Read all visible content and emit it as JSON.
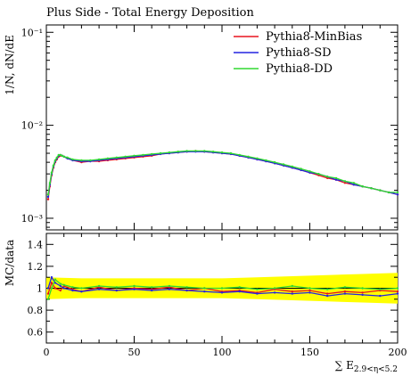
{
  "chart_data": [
    {
      "type": "line",
      "title": "Plus Side - Total Energy Deposition",
      "ylabel": "1/N, dN/dE",
      "yscale": "log",
      "ylim": [
        0.00075,
        0.12
      ],
      "xlim": [
        0,
        200
      ],
      "yticks": [
        {
          "value": 0.1,
          "label": "10⁻¹"
        },
        {
          "value": 0.01,
          "label": "10⁻²"
        },
        {
          "value": 0.001,
          "label": "10⁻³"
        }
      ],
      "legend_position": "top-right",
      "x": [
        1,
        2,
        3,
        4,
        5,
        6,
        7,
        8,
        9,
        10,
        12,
        15,
        20,
        25,
        30,
        35,
        40,
        45,
        50,
        55,
        60,
        65,
        70,
        75,
        80,
        85,
        90,
        95,
        100,
        105,
        110,
        115,
        120,
        125,
        130,
        135,
        140,
        145,
        150,
        155,
        160,
        165,
        170,
        175,
        180,
        185,
        190,
        195,
        200
      ],
      "series": [
        {
          "name": "Pythia8-MinBias",
          "color": "#e8141e",
          "values": [
            0.0016,
            0.0022,
            0.0029,
            0.0035,
            0.004,
            0.0043,
            0.0046,
            0.0047,
            0.0047,
            0.0046,
            0.0044,
            0.0042,
            0.004,
            0.0041,
            0.0041,
            0.0042,
            0.0043,
            0.0044,
            0.0045,
            0.0046,
            0.0047,
            0.0049,
            0.005,
            0.0051,
            0.0052,
            0.0053,
            0.0052,
            0.0051,
            0.005,
            0.0049,
            0.0047,
            0.0045,
            0.0043,
            0.0041,
            0.0039,
            0.0037,
            0.0035,
            0.0033,
            0.0031,
            0.0029,
            0.0027,
            0.0026,
            0.0024,
            0.0023,
            0.0022,
            0.0021,
            0.002,
            0.0019,
            0.0018
          ]
        },
        {
          "name": "Pythia8-SD",
          "color": "#2424e0",
          "values": [
            0.0017,
            0.0023,
            0.003,
            0.0036,
            0.0041,
            0.0044,
            0.0047,
            0.0048,
            0.0047,
            0.0046,
            0.0044,
            0.0042,
            0.0041,
            0.0041,
            0.0042,
            0.0043,
            0.0044,
            0.0045,
            0.0046,
            0.0047,
            0.0048,
            0.0049,
            0.005,
            0.0051,
            0.0052,
            0.0052,
            0.0052,
            0.0051,
            0.005,
            0.0049,
            0.0047,
            0.0045,
            0.0043,
            0.0041,
            0.0039,
            0.0037,
            0.0035,
            0.0033,
            0.0031,
            0.003,
            0.0028,
            0.0026,
            0.0025,
            0.0023,
            0.0022,
            0.0021,
            0.002,
            0.0019,
            0.0018
          ]
        },
        {
          "name": "Pythia8-DD",
          "color": "#30d930",
          "values": [
            0.0018,
            0.0024,
            0.0031,
            0.0037,
            0.0042,
            0.0045,
            0.0048,
            0.0048,
            0.0047,
            0.0046,
            0.0045,
            0.0043,
            0.0042,
            0.0042,
            0.0043,
            0.0044,
            0.0045,
            0.0046,
            0.0047,
            0.0048,
            0.0049,
            0.005,
            0.0051,
            0.0052,
            0.0053,
            0.0053,
            0.0053,
            0.0052,
            0.0051,
            0.005,
            0.0048,
            0.0046,
            0.0044,
            0.0042,
            0.004,
            0.0038,
            0.0036,
            0.0034,
            0.0032,
            0.003,
            0.0028,
            0.0027,
            0.0025,
            0.0024,
            0.0022,
            0.0021,
            0.002,
            0.0019,
            0.0019
          ]
        }
      ]
    },
    {
      "type": "line",
      "ylabel": "MC/data",
      "xlabel": "∑ E2.9<η<5.2",
      "xlabel_main": "∑ E",
      "xlabel_sub": "2.9<η<5.2",
      "xlim": [
        0,
        200
      ],
      "ylim": [
        0.5,
        1.5
      ],
      "xticks": [
        0,
        50,
        100,
        150,
        200
      ],
      "yticks": [
        {
          "value": 0.6,
          "label": "0.6"
        },
        {
          "value": 0.8,
          "label": "0.8"
        },
        {
          "value": 1.0,
          "label": "1"
        },
        {
          "value": 1.2,
          "label": "1.2"
        },
        {
          "value": 1.4,
          "label": "1.4"
        }
      ],
      "reference_line": 1.0,
      "uncertainty_band": {
        "color": "#ffff00",
        "x": [
          0,
          20,
          40,
          60,
          80,
          100,
          120,
          140,
          160,
          180,
          200
        ],
        "lower": [
          0.9,
          0.91,
          0.91,
          0.91,
          0.91,
          0.91,
          0.9,
          0.89,
          0.88,
          0.87,
          0.86
        ],
        "upper": [
          1.1,
          1.09,
          1.09,
          1.09,
          1.09,
          1.09,
          1.1,
          1.11,
          1.12,
          1.13,
          1.14
        ]
      },
      "x": [
        1,
        3,
        5,
        8,
        10,
        15,
        20,
        30,
        40,
        50,
        60,
        70,
        80,
        90,
        100,
        110,
        120,
        130,
        140,
        150,
        160,
        170,
        180,
        190,
        200
      ],
      "series": [
        {
          "name": "Pythia8-MinBias",
          "color": "#e8141e",
          "values": [
            0.95,
            1.05,
            1.0,
            0.98,
            1.02,
            0.99,
            0.97,
            1.01,
            0.98,
            1.0,
            0.99,
            1.01,
            0.98,
            1.0,
            0.97,
            0.98,
            0.96,
            0.99,
            0.97,
            0.98,
            0.95,
            0.97,
            0.96,
            0.98,
            0.97
          ]
        },
        {
          "name": "Pythia8-SD",
          "color": "#2424e0",
          "values": [
            1.0,
            1.1,
            1.05,
            1.02,
            1.0,
            0.98,
            0.97,
            0.99,
            0.98,
            0.99,
            0.98,
            0.99,
            0.98,
            0.97,
            0.96,
            0.97,
            0.95,
            0.96,
            0.95,
            0.96,
            0.93,
            0.95,
            0.94,
            0.93,
            0.95
          ]
        },
        {
          "name": "Pythia8-DD",
          "color": "#30d930",
          "values": [
            0.9,
            1.0,
            1.08,
            1.04,
            1.03,
            1.01,
            1.0,
            1.02,
            1.01,
            1.02,
            1.01,
            1.02,
            1.01,
            1.0,
            1.0,
            1.01,
            0.99,
            1.0,
            1.02,
            1.0,
            0.99,
            1.01,
            1.0,
            0.99,
            1.0
          ]
        }
      ]
    }
  ]
}
